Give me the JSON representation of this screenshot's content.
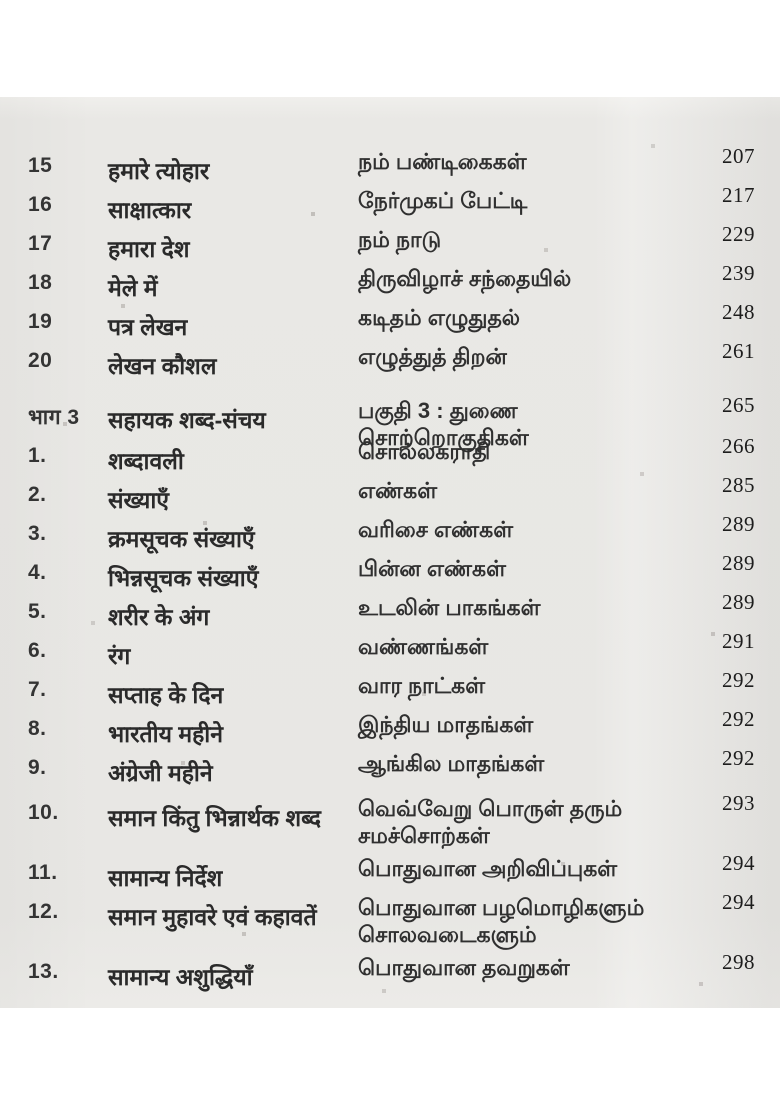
{
  "toc": {
    "sections": [
      {
        "rows": [
          {
            "num": "15",
            "hindi": "हमारे त्योहार",
            "tamil": "நம் பண்டிகைகள்",
            "page": "207"
          },
          {
            "num": "16",
            "hindi": "साक्षात्कार",
            "tamil": "நேர்முகப் பேட்டி",
            "page": "217"
          },
          {
            "num": "17",
            "hindi": "हमारा देश",
            "tamil": "நம் நாடு",
            "page": "229"
          },
          {
            "num": "18",
            "hindi": "मेले में",
            "tamil": "திருவிழாச் சந்தையில்",
            "page": "239"
          },
          {
            "num": "19",
            "hindi": "पत्र लेखन",
            "tamil": "கடிதம் எழுதுதல்",
            "page": "248"
          },
          {
            "num": "20",
            "hindi": "लेखन कौशल",
            "tamil": "எழுத்துத் திறன்",
            "page": "261"
          }
        ]
      },
      {
        "header": {
          "num": "भाग 3",
          "hindi": "सहायक शब्द-संचय",
          "tamil": "பகுதி 3 : துணை சொற்றொகுதிகள்",
          "page": "265"
        },
        "rows": [
          {
            "num": "1.",
            "hindi": "शब्दावली",
            "tamil": "சொல்லகராதி",
            "page": "266"
          },
          {
            "num": "2.",
            "hindi": "संख्याएँ",
            "tamil": "எண்கள்",
            "page": "285"
          },
          {
            "num": "3.",
            "hindi": "क्रमसूचक संख्याएँ",
            "tamil": "வரிசை எண்கள்",
            "page": "289"
          },
          {
            "num": "4.",
            "hindi": "भिन्नसूचक संख्याएँ",
            "tamil": "பின்ன எண்கள்",
            "page": "289"
          },
          {
            "num": "5.",
            "hindi": "शरीर के अंग",
            "tamil": "உடலின் பாகங்கள்",
            "page": "289"
          },
          {
            "num": "6.",
            "hindi": "रंग",
            "tamil": "வண்ணங்கள்",
            "page": "291"
          },
          {
            "num": "7.",
            "hindi": "सप्ताह के दिन",
            "tamil": "வார நாட்கள்",
            "page": "292"
          },
          {
            "num": "8.",
            "hindi": "भारतीय महीने",
            "tamil": "இந்திய மாதங்கள்",
            "page": "292"
          },
          {
            "num": "9.",
            "hindi": "अंग्रेजी महीने",
            "tamil": "ஆங்கில மாதங்கள்",
            "page": "292"
          },
          {
            "num": "10.",
            "hindi": "समान किंतु भिन्नार्थक शब्द",
            "tamil": "வெவ்வேறு பொருள் தரும்\nசமச்சொற்கள்",
            "page": "293"
          },
          {
            "num": "11.",
            "hindi": "सामान्य निर्देश",
            "tamil": "பொதுவான அறிவிப்புகள்",
            "page": "294"
          },
          {
            "num": "12.",
            "hindi": "समान मुहावरे एवं कहावतें",
            "tamil": "பொதுவான பழமொழிகளும்\nசொலவடைகளும்",
            "page": "294"
          },
          {
            "num": "13.",
            "hindi": "सामान्य अशुद्धियाँ",
            "tamil": "பொதுவான தவறுகள்",
            "page": "298"
          }
        ]
      }
    ]
  },
  "colors": {
    "scan_background": "#e8e7e4",
    "page_margin": "#ffffff",
    "text": "#2a2a2a"
  }
}
